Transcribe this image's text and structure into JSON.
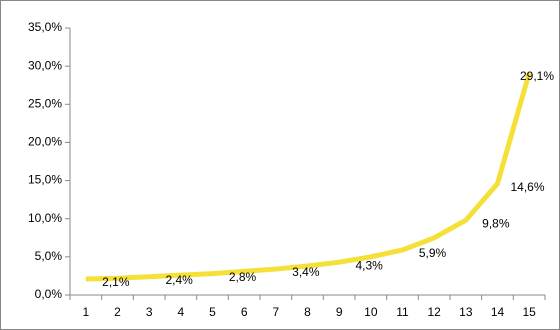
{
  "chart_data": {
    "type": "line",
    "categories": [
      "1",
      "2",
      "3",
      "4",
      "5",
      "6",
      "7",
      "8",
      "9",
      "10",
      "11",
      "12",
      "13",
      "14",
      "15"
    ],
    "series": [
      {
        "color": "#f5e03a",
        "values": [
          2.1,
          2.2,
          2.4,
          2.6,
          2.8,
          3.1,
          3.4,
          3.8,
          4.3,
          5.0,
          5.9,
          7.5,
          9.8,
          14.6,
          29.1
        ],
        "value_labels": [
          "2,1%",
          null,
          "2,4%",
          null,
          "2,8%",
          null,
          "3,4%",
          null,
          "4,3%",
          null,
          "5,9%",
          null,
          "9,8%",
          "14,6%",
          "29,1%"
        ]
      }
    ],
    "ylim": [
      0,
      35
    ],
    "yticks": [
      {
        "value": 0,
        "label": "0,0%"
      },
      {
        "value": 5,
        "label": "5,0%"
      },
      {
        "value": 10,
        "label": "10,0%"
      },
      {
        "value": 15,
        "label": "15,0%"
      },
      {
        "value": 20,
        "label": "20,0%"
      },
      {
        "value": 25,
        "label": "25,0%"
      },
      {
        "value": 30,
        "label": "30,0%"
      },
      {
        "value": 35,
        "label": "35,0%"
      }
    ]
  }
}
